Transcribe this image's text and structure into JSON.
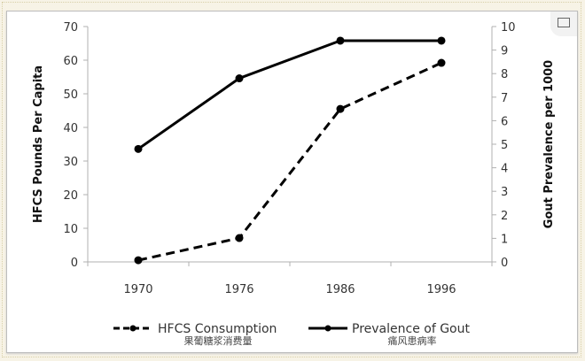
{
  "chart_data": {
    "type": "line",
    "categories": [
      "1970",
      "1976",
      "1986",
      "1996"
    ],
    "ylabel": "HFCS Pounds Per Capita",
    "y2label": "Gout Prevalence per 1000",
    "ylim": [
      0,
      70
    ],
    "y2lim": [
      0,
      10
    ],
    "yticks": [
      "0",
      "10",
      "20",
      "30",
      "40",
      "50",
      "60",
      "70"
    ],
    "y2ticks": [
      "0",
      "1",
      "2",
      "3",
      "4",
      "5",
      "6",
      "7",
      "8",
      "9",
      "10"
    ],
    "grid": false,
    "legend_position": "bottom",
    "series": [
      {
        "name": "HFCS Consumption",
        "name_zh": "果葡糖浆消费量",
        "axis": "left",
        "style": "dashed",
        "values": [
          0.5,
          7.1,
          45.5,
          59.2
        ]
      },
      {
        "name": "Prevalence of Gout",
        "name_zh": "痛风患病率",
        "axis": "right",
        "style": "solid",
        "values": [
          4.8,
          7.8,
          9.4,
          9.4
        ]
      }
    ],
    "colors": {
      "line": "#000000",
      "axis": "#b0b0b0",
      "text": "#333333"
    }
  }
}
